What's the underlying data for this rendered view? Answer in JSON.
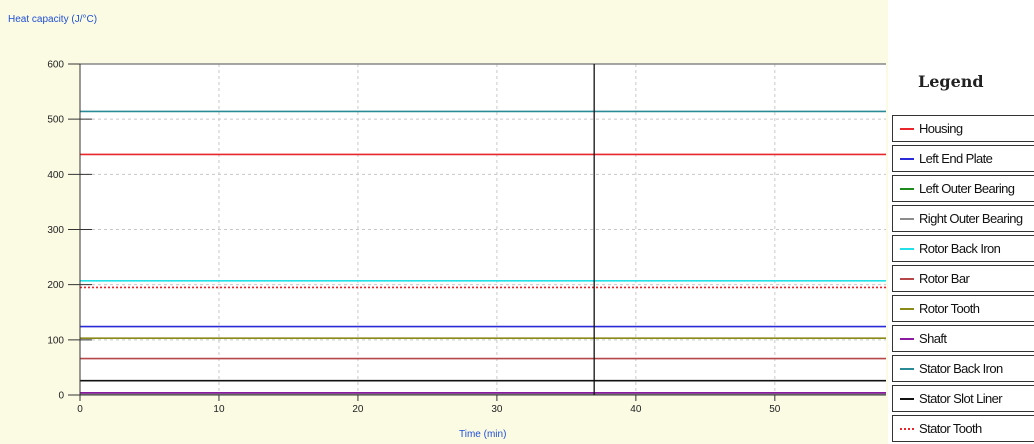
{
  "chart_data": {
    "type": "line",
    "title": "",
    "ylabel": "Heat capacity (J/°C)",
    "xlabel": "Time (min)",
    "xlim": [
      0,
      58
    ],
    "ylim": [
      0,
      600
    ],
    "x_ticks": [
      0,
      10,
      20,
      30,
      40,
      50
    ],
    "y_ticks": [
      0,
      100,
      200,
      300,
      400,
      500,
      600
    ],
    "grid": true,
    "legend_position": "right",
    "cursor_x": 37,
    "x": [
      0,
      58
    ],
    "series": [
      {
        "name": "Housing",
        "color": "#e8262b",
        "style": "solid",
        "values": [
          436,
          436
        ]
      },
      {
        "name": "Left End Plate",
        "color": "#2a2ad8",
        "style": "solid",
        "values": [
          124,
          124
        ]
      },
      {
        "name": "Left Outer Bearing",
        "color": "#1e8a1e",
        "style": "solid",
        "values": [
          2,
          2
        ]
      },
      {
        "name": "Right Outer Bearing",
        "color": "#8c8c8c",
        "style": "solid",
        "values": [
          2,
          2
        ]
      },
      {
        "name": "Rotor Back Iron",
        "color": "#22e0e8",
        "style": "solid",
        "values": [
          207,
          207
        ]
      },
      {
        "name": "Rotor Bar",
        "color": "#b5474a",
        "style": "solid",
        "values": [
          66,
          66
        ]
      },
      {
        "name": "Rotor Tooth",
        "color": "#8a8a18",
        "style": "solid",
        "values": [
          103,
          103
        ]
      },
      {
        "name": "Shaft",
        "color": "#8a1aa0",
        "style": "solid",
        "values": [
          4,
          4
        ]
      },
      {
        "name": "Stator Back Iron",
        "color": "#2a8a96",
        "style": "solid",
        "values": [
          514,
          514
        ]
      },
      {
        "name": "Stator Slot Liner",
        "color": "#111111",
        "style": "solid",
        "values": [
          26,
          26
        ]
      },
      {
        "name": "Stator Tooth",
        "color": "#e8262b",
        "style": "dotted",
        "values": [
          195,
          195
        ]
      }
    ]
  },
  "legend": {
    "title": "Legend"
  }
}
